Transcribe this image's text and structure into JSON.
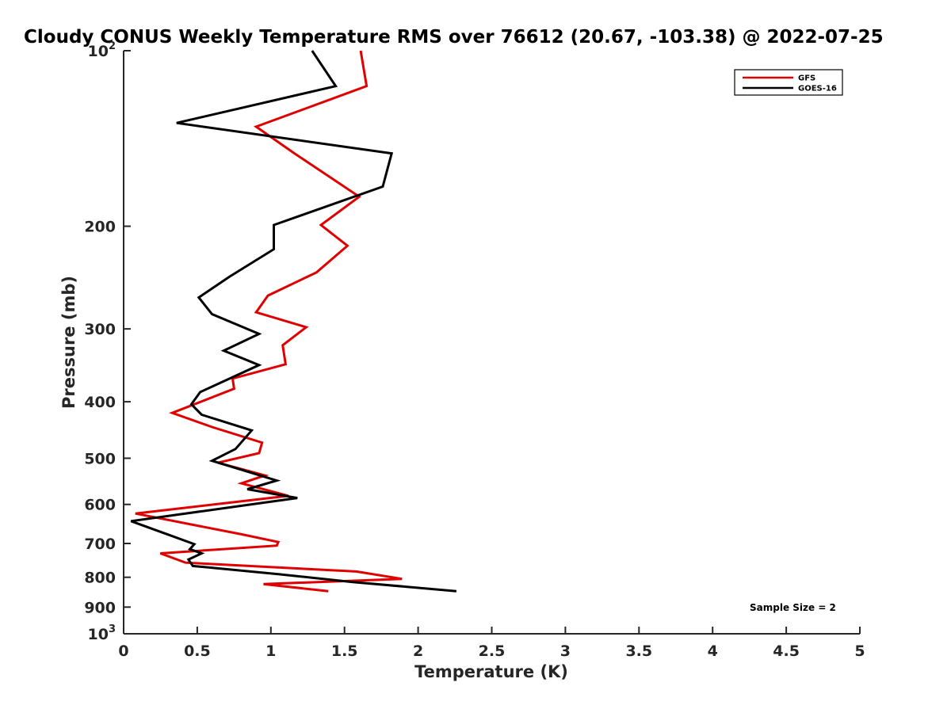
{
  "chart_data": {
    "type": "line",
    "title": "Cloudy CONUS Weekly Temperature RMS over 76612 (20.67, -103.38) @ 2022-07-25",
    "xlabel": "Temperature (K)",
    "ylabel": "Pressure (mb)",
    "xlim": [
      0,
      5
    ],
    "ylim": [
      1000,
      100
    ],
    "y_scale": "log",
    "x_ticks": [
      0,
      0.5,
      1,
      1.5,
      2,
      2.5,
      3,
      3.5,
      4,
      4.5,
      5
    ],
    "x_tick_labels": [
      "0",
      "0.5",
      "1",
      "1.5",
      "2",
      "2.5",
      "3",
      "3.5",
      "4",
      "4.5",
      "5"
    ],
    "y_ticks": [
      {
        "value": 100,
        "base": "10",
        "exp": "2"
      },
      {
        "value": 200,
        "label": "200"
      },
      {
        "value": 300,
        "label": "300"
      },
      {
        "value": 400,
        "label": "400"
      },
      {
        "value": 500,
        "label": "500"
      },
      {
        "value": 600,
        "label": "600"
      },
      {
        "value": 700,
        "label": "700"
      },
      {
        "value": 800,
        "label": "800"
      },
      {
        "value": 900,
        "label": "900"
      },
      {
        "value": 1000,
        "base": "10",
        "exp": "3"
      }
    ],
    "legend": {
      "position": "top-right"
    },
    "annotation": "Sample Size = 2",
    "series": [
      {
        "name": "GFS",
        "color": "#e00000",
        "points": [
          [
            1.61,
            100
          ],
          [
            1.65,
            115
          ],
          [
            0.9,
            135
          ],
          [
            1.16,
            150
          ],
          [
            1.6,
            178
          ],
          [
            1.34,
            199
          ],
          [
            1.52,
            216
          ],
          [
            1.31,
            240
          ],
          [
            0.98,
            263
          ],
          [
            0.9,
            281
          ],
          [
            1.24,
            298
          ],
          [
            1.08,
            320
          ],
          [
            1.1,
            345
          ],
          [
            0.74,
            365
          ],
          [
            0.75,
            380
          ],
          [
            0.33,
            418
          ],
          [
            0.6,
            442
          ],
          [
            0.94,
            470
          ],
          [
            0.92,
            490
          ],
          [
            0.64,
            509
          ],
          [
            0.96,
            535
          ],
          [
            0.8,
            552
          ],
          [
            1.12,
            580
          ],
          [
            0.08,
            622
          ],
          [
            0.8,
            675
          ],
          [
            1.05,
            696
          ],
          [
            1.04,
            706
          ],
          [
            0.25,
            728
          ],
          [
            0.42,
            755
          ],
          [
            1.58,
            782
          ],
          [
            1.89,
            805
          ],
          [
            0.95,
            822
          ],
          [
            1.39,
            845
          ]
        ]
      },
      {
        "name": "GOES-16",
        "color": "#000000",
        "points": [
          [
            1.28,
            100
          ],
          [
            1.44,
            115
          ],
          [
            0.36,
            133
          ],
          [
            1.82,
            150
          ],
          [
            1.76,
            171
          ],
          [
            1.02,
            199
          ],
          [
            1.02,
            219
          ],
          [
            0.72,
            244
          ],
          [
            0.51,
            265
          ],
          [
            0.6,
            283
          ],
          [
            0.92,
            306
          ],
          [
            0.68,
            327
          ],
          [
            0.92,
            346
          ],
          [
            0.52,
            385
          ],
          [
            0.46,
            404
          ],
          [
            0.53,
            421
          ],
          [
            0.87,
            448
          ],
          [
            0.76,
            482
          ],
          [
            0.6,
            505
          ],
          [
            1.04,
            546
          ],
          [
            0.84,
            565
          ],
          [
            1.18,
            585
          ],
          [
            0.05,
            641
          ],
          [
            0.33,
            680
          ],
          [
            0.48,
            702
          ],
          [
            0.45,
            716
          ],
          [
            0.53,
            728
          ],
          [
            0.44,
            746
          ],
          [
            0.47,
            765
          ],
          [
            1.05,
            790
          ],
          [
            1.55,
            815
          ],
          [
            2.26,
            845
          ]
        ]
      }
    ]
  }
}
